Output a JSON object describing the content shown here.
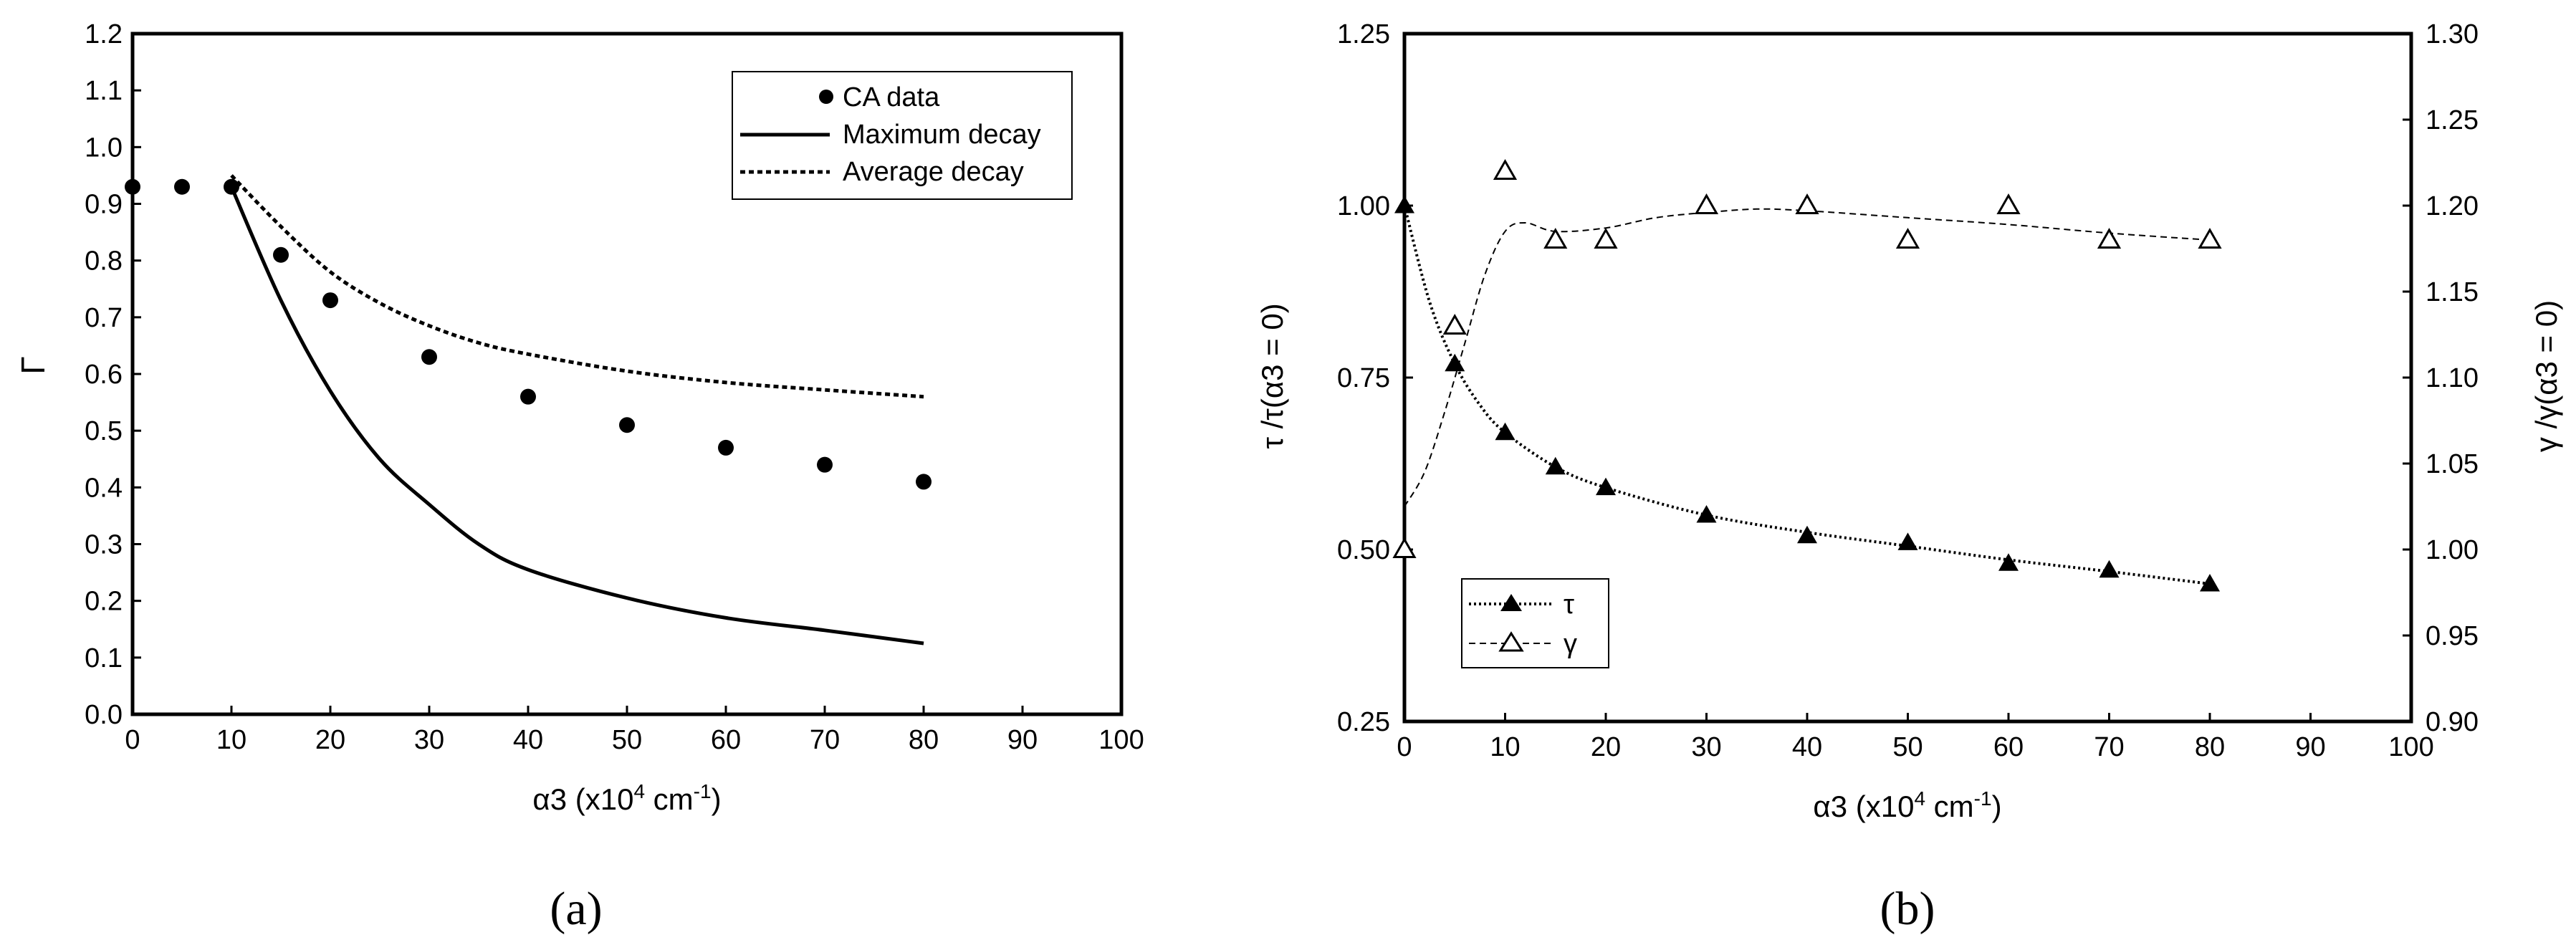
{
  "chart_data": [
    {
      "type": "line",
      "panel_label": "(a)",
      "xlabel": "α3 (x10",
      "xlabel_exp": "4",
      "xlabel_unit": " cm",
      "xlabel_unit_exp": "-1",
      "xlabel_close": ")",
      "ylabel": "Γ",
      "xlim": [
        0,
        100
      ],
      "ylim": [
        0,
        1.2
      ],
      "x_ticks": [
        "0",
        "10",
        "20",
        "30",
        "40",
        "50",
        "60",
        "70",
        "80",
        "90",
        "100"
      ],
      "y_ticks": [
        "0.0",
        "0.1",
        "0.2",
        "0.3",
        "0.4",
        "0.5",
        "0.6",
        "0.7",
        "0.8",
        "0.9",
        "1.0",
        "1.1",
        "1.2"
      ],
      "legend_position": "top-right",
      "series": [
        {
          "name": "CA data",
          "style": "markers",
          "x": [
            0,
            5,
            10,
            15,
            20,
            30,
            40,
            50,
            60,
            70,
            80
          ],
          "y": [
            0.93,
            0.93,
            0.93,
            0.81,
            0.73,
            0.63,
            0.56,
            0.51,
            0.47,
            0.44,
            0.41
          ]
        },
        {
          "name": "Maximum decay",
          "style": "solid",
          "x": [
            10,
            15,
            20,
            25,
            30,
            35,
            40,
            50,
            60,
            70,
            80
          ],
          "y": [
            0.93,
            0.73,
            0.57,
            0.45,
            0.37,
            0.3,
            0.255,
            0.205,
            0.17,
            0.148,
            0.125
          ]
        },
        {
          "name": "Average decay",
          "style": "dotted",
          "x": [
            10,
            15,
            20,
            25,
            30,
            35,
            40,
            50,
            60,
            70,
            80
          ],
          "y": [
            0.95,
            0.86,
            0.78,
            0.725,
            0.685,
            0.655,
            0.635,
            0.605,
            0.585,
            0.572,
            0.56
          ]
        }
      ]
    },
    {
      "type": "line",
      "panel_label": "(b)",
      "xlabel": "α3 (x10",
      "xlabel_exp": "4",
      "xlabel_unit": " cm",
      "xlabel_unit_exp": "-1",
      "xlabel_close": ")",
      "ylabel_left": "τ /τ(α3 = 0)",
      "ylabel_right": "γ /γ(α3 = 0)",
      "xlim": [
        0,
        100
      ],
      "ylim_left": [
        0.25,
        1.25
      ],
      "ylim_right": [
        0.9,
        1.3
      ],
      "x_ticks": [
        "0",
        "10",
        "20",
        "30",
        "40",
        "50",
        "60",
        "70",
        "80",
        "90",
        "100"
      ],
      "y_ticks_left": [
        "0.25",
        "0.50",
        "0.75",
        "1.00",
        "1.25"
      ],
      "y_ticks_right": [
        "0.90",
        "0.95",
        "1.00",
        "1.05",
        "1.10",
        "1.15",
        "1.20",
        "1.25",
        "1.30"
      ],
      "legend_position": "bottom-left",
      "series": [
        {
          "name": "τ",
          "axis": "left",
          "marker": "filled-triangle",
          "x": [
            0,
            5,
            10,
            15,
            20,
            30,
            40,
            50,
            60,
            70,
            80
          ],
          "y": [
            1.0,
            0.77,
            0.67,
            0.62,
            0.59,
            0.55,
            0.52,
            0.51,
            0.48,
            0.47,
            0.45
          ],
          "fit_x": [
            0,
            2.5,
            5,
            7.5,
            10,
            15,
            20,
            30,
            40,
            50,
            60,
            70,
            80
          ],
          "fit_y": [
            1.0,
            0.86,
            0.77,
            0.71,
            0.67,
            0.62,
            0.59,
            0.55,
            0.525,
            0.505,
            0.485,
            0.468,
            0.45
          ]
        },
        {
          "name": "γ",
          "axis": "right",
          "marker": "open-triangle",
          "x": [
            0,
            5,
            10,
            15,
            20,
            30,
            40,
            50,
            60,
            70,
            80
          ],
          "y": [
            1.0,
            1.13,
            1.22,
            1.18,
            1.18,
            1.2,
            1.2,
            1.18,
            1.2,
            1.18,
            1.18
          ],
          "fit_x": [
            0,
            2,
            4,
            6,
            8,
            10,
            12,
            15,
            20,
            25,
            30,
            35,
            40,
            50,
            60,
            70,
            80
          ],
          "fit_y": [
            1.025,
            1.045,
            1.08,
            1.12,
            1.16,
            1.185,
            1.19,
            1.185,
            1.187,
            1.193,
            1.196,
            1.198,
            1.197,
            1.193,
            1.189,
            1.184,
            1.18
          ]
        }
      ]
    }
  ]
}
